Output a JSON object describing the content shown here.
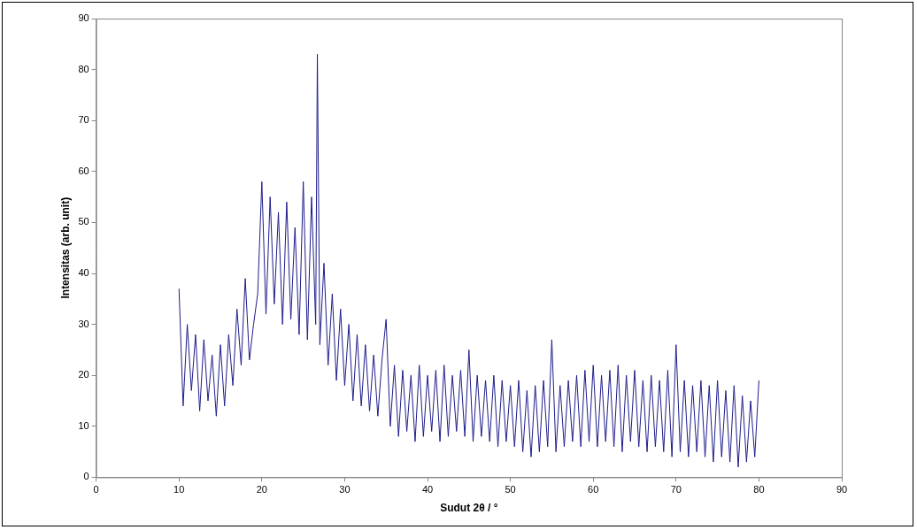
{
  "chart_data": {
    "type": "line",
    "x_label": "Sudut 2θ / °",
    "y_label": "Intensitas (arb. unit)",
    "color": "#1c1c8a",
    "grid": false,
    "xlim": [
      0,
      90
    ],
    "xticks": [
      0,
      10,
      20,
      30,
      40,
      50,
      60,
      70,
      80,
      90
    ],
    "ylim": [
      0,
      90
    ],
    "yticks": [
      0,
      10,
      20,
      30,
      40,
      50,
      60,
      70,
      80,
      90
    ],
    "x": [
      10,
      10.5,
      11,
      11.5,
      12,
      12.5,
      13,
      13.5,
      14,
      14.5,
      15,
      15.5,
      16,
      16.5,
      17,
      17.5,
      18,
      18.5,
      19,
      19.5,
      20,
      20.5,
      21,
      21.5,
      22,
      22.5,
      23,
      23.5,
      24,
      24.5,
      25,
      25.5,
      26,
      26.5,
      26.7,
      27,
      27.5,
      28,
      28.5,
      29,
      29.5,
      30,
      30.5,
      31,
      31.5,
      32,
      32.5,
      33,
      33.5,
      34,
      34.5,
      35,
      35.5,
      36,
      36.5,
      37,
      37.5,
      38,
      38.5,
      39,
      39.5,
      40,
      40.5,
      41,
      41.5,
      42,
      42.5,
      43,
      43.5,
      44,
      44.5,
      45,
      45.5,
      46,
      46.5,
      47,
      47.5,
      48,
      48.5,
      49,
      49.5,
      50,
      50.5,
      51,
      51.5,
      52,
      52.5,
      53,
      53.5,
      54,
      54.5,
      55,
      55.5,
      56,
      56.5,
      57,
      57.5,
      58,
      58.5,
      59,
      59.5,
      60,
      60.5,
      61,
      61.5,
      62,
      62.5,
      63,
      63.5,
      64,
      64.5,
      65,
      65.5,
      66,
      66.5,
      67,
      67.5,
      68,
      68.5,
      69,
      69.5,
      70,
      70.5,
      71,
      71.5,
      72,
      72.5,
      73,
      73.5,
      74,
      74.5,
      75,
      75.5,
      76,
      76.5,
      77,
      77.5,
      78,
      78.5,
      79,
      79.5,
      80
    ],
    "values": [
      37,
      14,
      30,
      17,
      28,
      13,
      27,
      15,
      24,
      12,
      26,
      14,
      28,
      18,
      33,
      22,
      39,
      23,
      30,
      36,
      58,
      32,
      55,
      34,
      52,
      30,
      54,
      31,
      49,
      28,
      58,
      27,
      55,
      30,
      83,
      26,
      42,
      22,
      36,
      19,
      33,
      18,
      30,
      15,
      28,
      14,
      26,
      13,
      24,
      12,
      23,
      31,
      10,
      22,
      8,
      21,
      9,
      20,
      7,
      22,
      8,
      20,
      9,
      21,
      7,
      22,
      8,
      20,
      9,
      21,
      8,
      25,
      7,
      20,
      8,
      19,
      7,
      20,
      6,
      19,
      7,
      18,
      6,
      19,
      5,
      17,
      4,
      18,
      5,
      19,
      6,
      27,
      5,
      18,
      6,
      19,
      7,
      20,
      6,
      21,
      7,
      22,
      6,
      20,
      7,
      21,
      6,
      22,
      5,
      20,
      7,
      21,
      6,
      19,
      5,
      20,
      6,
      19,
      5,
      21,
      4,
      26,
      5,
      19,
      4,
      18,
      5,
      19,
      4,
      18,
      3,
      19,
      4,
      17,
      3,
      18,
      2,
      16,
      3,
      15,
      4,
      19
    ]
  }
}
